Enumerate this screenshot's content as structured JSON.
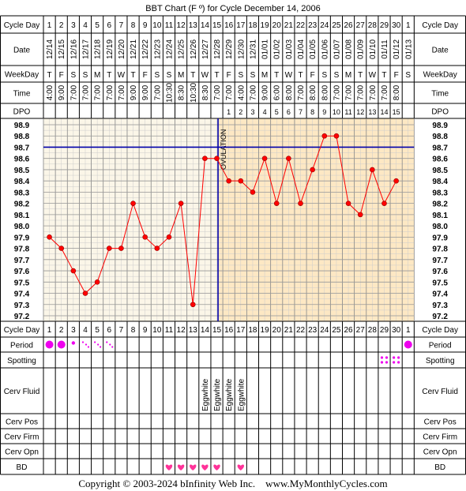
{
  "title": "BBT Chart (F º) for Cycle December 14, 2006",
  "row_labels": {
    "cycle_day": "Cycle Day",
    "date": "Date",
    "weekday": "WeekDay",
    "time": "Time",
    "dpo": "DPO",
    "period": "Period",
    "spotting": "Spotting",
    "cerv_fluid": "Cerv Fluid",
    "cerv_pos": "Cerv Pos",
    "cerv_firm": "Cerv Firm",
    "cerv_opn": "Cerv Opn",
    "bd": "BD"
  },
  "days": [
    1,
    2,
    3,
    4,
    5,
    6,
    7,
    8,
    9,
    10,
    11,
    12,
    13,
    14,
    15,
    16,
    17,
    18,
    19,
    20,
    21,
    22,
    23,
    24,
    25,
    26,
    27,
    28,
    29,
    30,
    1
  ],
  "dates": [
    "12/14",
    "12/15",
    "12/16",
    "12/17",
    "12/18",
    "12/19",
    "12/20",
    "12/21",
    "12/22",
    "12/23",
    "12/24",
    "12/25",
    "12/26",
    "12/27",
    "12/28",
    "12/29",
    "12/30",
    "12/31",
    "01/01",
    "01/02",
    "01/03",
    "01/04",
    "01/05",
    "01/06",
    "01/07",
    "01/08",
    "01/09",
    "01/10",
    "01/11",
    "01/12",
    "01/13"
  ],
  "weekdays": [
    "T",
    "F",
    "S",
    "S",
    "M",
    "T",
    "W",
    "T",
    "F",
    "S",
    "S",
    "M",
    "T",
    "W",
    "T",
    "F",
    "S",
    "S",
    "M",
    "T",
    "W",
    "T",
    "F",
    "S",
    "S",
    "M",
    "T",
    "W",
    "T",
    "F",
    "S"
  ],
  "times": [
    "4:00",
    "9:00",
    "7:00",
    "7:00",
    "7:00",
    "7:00",
    "7:00",
    "9:00",
    "9:00",
    "7:00",
    "10:30",
    "8:30",
    "10:30",
    "8:30",
    "7:00",
    "7:00",
    "4:00",
    "7:00",
    "9:00",
    "6:00",
    "8:00",
    "7:00",
    "8:00",
    "8:00",
    "7:00",
    "7:00",
    "7:00",
    "7:00",
    "7:00",
    "8:00",
    ""
  ],
  "dpo": [
    "",
    "",
    "",
    "",
    "",
    "",
    "",
    "",
    "",
    "",
    "",
    "",
    "",
    "",
    "",
    "1",
    "2",
    "3",
    "4",
    "5",
    "6",
    "7",
    "8",
    "9",
    "10",
    "11",
    "12",
    "13",
    "14",
    "15",
    ""
  ],
  "period": [
    "heavy",
    "heavy",
    "light",
    "spot",
    "spot",
    "spot",
    "",
    "",
    "",
    "",
    "",
    "",
    "",
    "",
    "",
    "",
    "",
    "",
    "",
    "",
    "",
    "",
    "",
    "",
    "",
    "",
    "",
    "",
    "",
    "",
    "heavy"
  ],
  "spotting": [
    29,
    30
  ],
  "cerv_fluid": [
    "",
    "",
    "",
    "",
    "",
    "",
    "",
    "",
    "",
    "",
    "",
    "",
    "",
    "Eggwhite",
    "Eggwhite",
    "Eggwhite",
    "Eggwhite",
    "",
    "",
    "",
    "",
    "",
    "",
    "",
    "",
    "",
    "",
    "",
    "",
    "",
    ""
  ],
  "bd": [
    11,
    12,
    13,
    14,
    15,
    17
  ],
  "ovulation_label": "OVULATION",
  "colors": {
    "temp_line": "#ff0000",
    "cover_line": "#0000aa",
    "post_ovulation_fill": "#fde8c4",
    "pre_ovulation_fill": "#fbf6e8",
    "period_dot": "#ee00ee",
    "heart": "#ff3399",
    "grid": "#cccccc"
  },
  "chart_data": {
    "type": "line",
    "title": "BBT Chart (F º) for Cycle December 14, 2006",
    "xlabel": "Cycle Day",
    "ylabel": "",
    "x": [
      1,
      2,
      3,
      4,
      5,
      6,
      7,
      8,
      9,
      10,
      11,
      12,
      13,
      14,
      15,
      16,
      17,
      18,
      19,
      20,
      21,
      22,
      23,
      24,
      25,
      26,
      27,
      28,
      29,
      30
    ],
    "series": [
      {
        "values": [
          97.9,
          97.8,
          97.6,
          97.4,
          97.5,
          97.8,
          97.8,
          98.2,
          97.9,
          97.8,
          97.9,
          98.2,
          97.3,
          98.6,
          98.6,
          98.4,
          98.4,
          98.3,
          98.6,
          98.2,
          98.6,
          98.2,
          98.5,
          98.8,
          98.8,
          98.2,
          98.1,
          98.5,
          98.2,
          98.4
        ]
      }
    ],
    "yticks": [
      "98.9",
      "98.8",
      "98.7",
      "98.6",
      "98.5",
      "98.4",
      "98.3",
      "98.2",
      "98.1",
      "98.0",
      "97.9",
      "97.8",
      "97.7",
      "97.6",
      "97.5",
      "97.4",
      "97.3",
      "97.2"
    ],
    "ylim": [
      97.2,
      98.9
    ],
    "coverline": 98.7,
    "ovulation_day": 15,
    "grid": true
  },
  "copyright": "Copyright © 2003-2024 bInfinity Web Inc.    www.MyMonthlyCycles.com"
}
